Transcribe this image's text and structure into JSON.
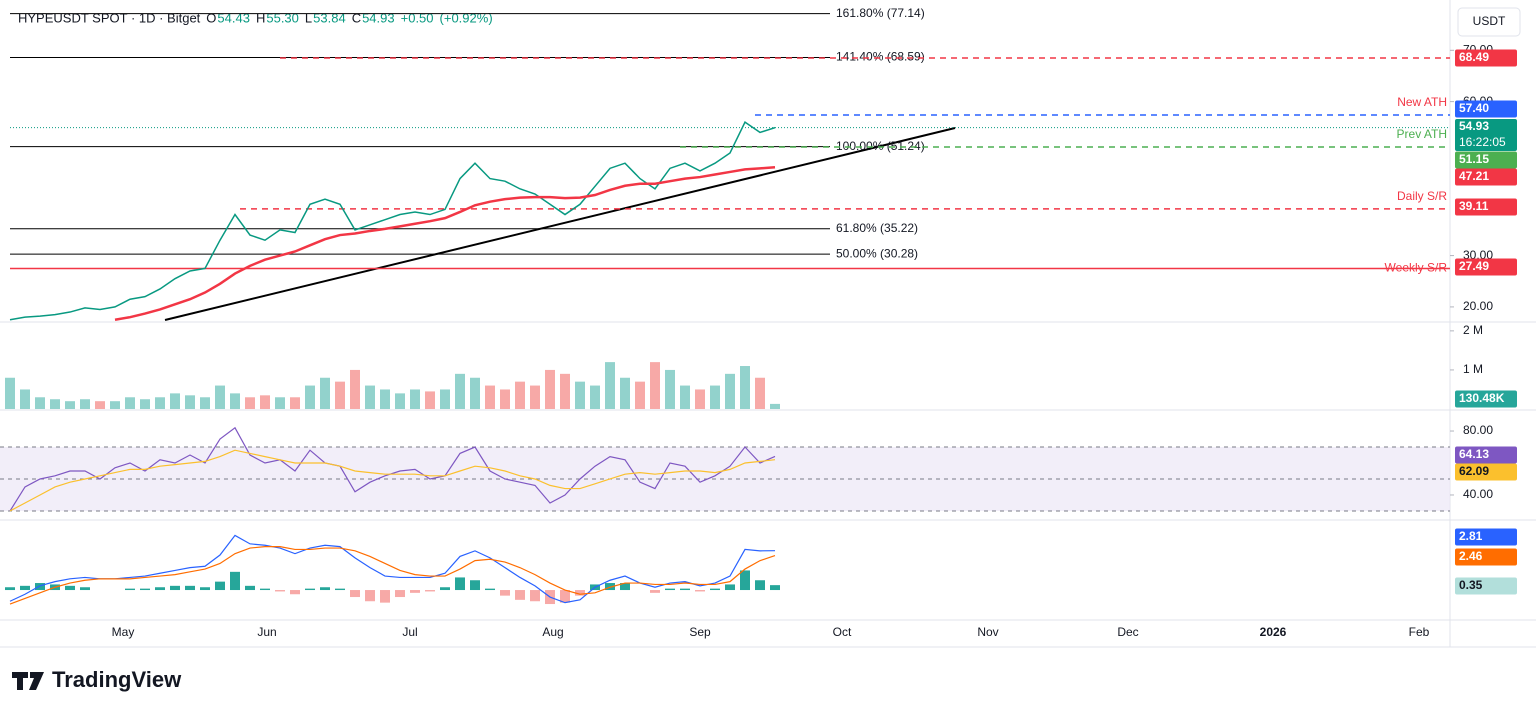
{
  "header": {
    "symbol": "HYPEUSDT SPOT · 1D · Bitget",
    "ohlc": [
      {
        "key": "O",
        "value": 54.43,
        "label": "54.43"
      },
      {
        "key": "H",
        "value": 55.3,
        "label": "55.30"
      },
      {
        "key": "L",
        "value": 53.84,
        "label": "53.84"
      },
      {
        "key": "C",
        "value": 54.93,
        "label": "54.93"
      }
    ],
    "change": {
      "value": 0.5,
      "label": "+0.50"
    },
    "change_pct": {
      "value": 0.92,
      "label": "(+0.92%)"
    }
  },
  "axis_unit": "USDT",
  "chart_data": [
    {
      "type": "line",
      "ylim": [
        17.06,
        79.8
      ],
      "yticks": [
        {
          "value": 70,
          "label": "70.00"
        },
        {
          "value": 60,
          "label": "60.00"
        },
        {
          "value": 30,
          "label": "30.00"
        },
        {
          "value": 20,
          "label": "20.00"
        }
      ],
      "series": [
        {
          "color": "#089981",
          "values": [
            17.5,
            18,
            18.2,
            18.5,
            19,
            19.8,
            19.5,
            20,
            21.5,
            22,
            23.5,
            25.5,
            27,
            27.5,
            33,
            38,
            34,
            33,
            35,
            34.5,
            40,
            41,
            40,
            35,
            36,
            37,
            38,
            38.5,
            38,
            39,
            45,
            48,
            45,
            44.5,
            43,
            42,
            40,
            38,
            40,
            43.5,
            47,
            48,
            45,
            43,
            47,
            48,
            46.5,
            48,
            50,
            56,
            54,
            54.93
          ]
        },
        {
          "color": "#f23645",
          "values": [
            null,
            null,
            null,
            null,
            null,
            null,
            null,
            17.5,
            18,
            18.7,
            19.5,
            20.5,
            21.5,
            22.8,
            24.5,
            26.5,
            28,
            29.2,
            30,
            30.8,
            32,
            33.2,
            34,
            34.3,
            34.8,
            35.2,
            35.7,
            36.2,
            36.7,
            37.3,
            38.5,
            39.8,
            40.5,
            41,
            41.3,
            41.4,
            41.4,
            41.2,
            41.3,
            41.8,
            42.8,
            43.6,
            44,
            44,
            44.5,
            45,
            45.3,
            45.8,
            46.3,
            46.8,
            47,
            47.21
          ]
        }
      ],
      "fib_levels": [
        {
          "value": 77.14,
          "label": "161.80% (77.14)"
        },
        {
          "value": 68.59,
          "label": "141.40% (68.59)"
        },
        {
          "value": 51.24,
          "label": "100.00% (51.24)"
        },
        {
          "value": 35.22,
          "label": "61.80% (35.22)"
        },
        {
          "value": 30.28,
          "label": "50.00% (30.28)"
        }
      ],
      "levels": [
        {
          "value": 68.49,
          "tag": "68.49",
          "color": "#f23645",
          "style": "dashed"
        },
        {
          "value": 57.4,
          "tag": "57.40",
          "color": "#2962ff",
          "style": "dashed",
          "label": "New ATH",
          "label_color": "#f23645"
        },
        {
          "value": 51.15,
          "tag": "51.15",
          "color": "#4caf50",
          "style": "dashed",
          "label": "Prev ATH",
          "label_color": "#4caf50"
        },
        {
          "value": 39.11,
          "tag": "39.11",
          "color": "#f23645",
          "style": "dashed",
          "label": "Daily S/R",
          "label_color": "#f23645"
        },
        {
          "value": 27.49,
          "tag": "27.49",
          "color": "#f23645",
          "style": "solid",
          "label": "Weekly S/R",
          "label_color": "#f23645"
        }
      ],
      "price_tags": [
        {
          "value": 54.93,
          "label": "54.93",
          "sub": "16:22:05",
          "color": "#089981"
        },
        {
          "value": 47.21,
          "label": "47.21",
          "color": "#f23645"
        }
      ]
    },
    {
      "type": "bar",
      "ylim": [
        0,
        2150000
      ],
      "yticks": [
        {
          "value": 2000000,
          "label": "2 M"
        },
        {
          "value": 1000000,
          "label": "1 M"
        }
      ],
      "up_color": "#92d2cc",
      "down_color": "#f7a9a7",
      "values": [
        800000,
        500000,
        300000,
        250000,
        200000,
        250000,
        200000,
        200000,
        300000,
        250000,
        300000,
        400000,
        350000,
        300000,
        600000,
        400000,
        300000,
        350000,
        300000,
        300000,
        600000,
        800000,
        700000,
        1000000,
        600000,
        500000,
        400000,
        500000,
        450000,
        500000,
        900000,
        800000,
        600000,
        500000,
        700000,
        600000,
        1000000,
        900000,
        700000,
        600000,
        1200000,
        800000,
        700000,
        1200000,
        1000000,
        600000,
        500000,
        600000,
        900000,
        1100000,
        800000,
        130480
      ],
      "tag": {
        "value": 130480,
        "label": "130.48K",
        "color": "#26a69a"
      }
    },
    {
      "type": "line",
      "ylim": [
        25.6,
        91.9
      ],
      "yticks": [
        {
          "value": 80,
          "label": "80.00"
        },
        {
          "value": 40,
          "label": "40.00"
        }
      ],
      "band": [
        30,
        70
      ],
      "guides": [
        70,
        50,
        30
      ],
      "series": [
        {
          "color": "#7e57c2",
          "values": [
            30,
            45,
            50,
            52,
            55,
            55,
            50,
            57,
            60,
            55,
            62,
            60,
            65,
            60,
            75,
            82,
            65,
            60,
            62,
            55,
            68,
            60,
            58,
            42,
            48,
            52,
            55,
            56,
            50,
            52,
            66,
            70,
            55,
            50,
            48,
            46,
            35,
            40,
            50,
            58,
            64,
            62,
            48,
            44,
            60,
            58,
            48,
            52,
            58,
            70,
            60,
            64.13
          ]
        },
        {
          "color": "#fbc02d",
          "values": [
            30,
            35,
            40,
            45,
            48,
            50,
            52,
            54,
            56,
            56,
            58,
            59,
            60,
            61,
            64,
            68,
            66,
            64,
            62,
            60,
            60,
            60,
            58,
            55,
            54,
            53,
            53,
            53,
            52,
            52,
            55,
            58,
            57,
            55,
            52,
            50,
            46,
            44,
            44,
            47,
            50,
            53,
            54,
            53,
            54,
            55,
            55,
            54,
            56,
            60,
            61,
            62.09
          ]
        }
      ],
      "tags": [
        {
          "value": 64.13,
          "label": "64.13",
          "color": "#7e57c2"
        },
        {
          "value": 62.09,
          "label": "62.09",
          "color": "#fbc02d"
        }
      ]
    },
    {
      "type": "macd",
      "ylim": [
        -2.14,
        4.86
      ],
      "histogram": [
        0.2,
        0.3,
        0.5,
        0.4,
        0.3,
        0.2,
        0,
        0,
        0.1,
        0.1,
        0.2,
        0.3,
        0.3,
        0.2,
        0.6,
        1.3,
        0.3,
        0.1,
        -0.1,
        -0.3,
        0.1,
        0.2,
        0.1,
        -0.5,
        -0.8,
        -0.9,
        -0.5,
        -0.2,
        -0.1,
        0.2,
        0.9,
        0.7,
        0.1,
        -0.4,
        -0.7,
        -0.8,
        -1,
        -0.9,
        -0.4,
        0.4,
        0.5,
        0.5,
        0,
        -0.2,
        0.1,
        0.1,
        -0.1,
        0.1,
        0.4,
        1.4,
        0.7,
        0.35
      ],
      "up_color": "#26a69a",
      "down_color": "#f7a9a7",
      "series": [
        {
          "color": "#2962ff",
          "values": [
            -0.8,
            -0.3,
            0.3,
            0.6,
            0.8,
            0.9,
            0.8,
            0.8,
            0.9,
            1,
            1.2,
            1.4,
            1.6,
            1.7,
            2.5,
            3.9,
            3.3,
            3.2,
            3,
            2.6,
            3,
            3.2,
            3.1,
            2.3,
            1.6,
            1,
            0.9,
            0.9,
            0.9,
            1.2,
            2.4,
            2.8,
            2.3,
            1.6,
            0.9,
            0.3,
            -0.5,
            -0.9,
            -0.7,
            0.2,
            0.7,
            1,
            0.5,
            0.2,
            0.5,
            0.6,
            0.3,
            0.5,
            1,
            2.9,
            2.8,
            2.81
          ]
        },
        {
          "color": "#ff6d00",
          "values": [
            -1,
            -0.6,
            -0.2,
            0.2,
            0.5,
            0.7,
            0.8,
            0.8,
            0.8,
            0.9,
            1,
            1.1,
            1.3,
            1.5,
            1.9,
            2.6,
            3,
            3.1,
            3.1,
            2.9,
            2.9,
            3,
            3,
            2.8,
            2.4,
            1.9,
            1.4,
            1.1,
            1,
            1,
            1.5,
            2.1,
            2.2,
            2,
            1.6,
            1.1,
            0.5,
            0,
            -0.3,
            -0.2,
            0.2,
            0.5,
            0.5,
            0.4,
            0.4,
            0.5,
            0.4,
            0.4,
            0.6,
            1.5,
            2.1,
            2.46
          ]
        }
      ],
      "tags": [
        {
          "value": 2.81,
          "label": "2.81",
          "color": "#2962ff"
        },
        {
          "value": 2.46,
          "label": "2.46",
          "color": "#ff6d00"
        },
        {
          "value": 0.35,
          "label": "0.35",
          "color": "#b2dfdb",
          "text_color": "#131722"
        }
      ]
    }
  ],
  "time_axis": [
    "May",
    "Jun",
    "Jul",
    "Aug",
    "Sep",
    "Oct",
    "Nov",
    "Dec",
    "2026",
    "Feb"
  ],
  "footer": {
    "brand": "TradingView"
  }
}
